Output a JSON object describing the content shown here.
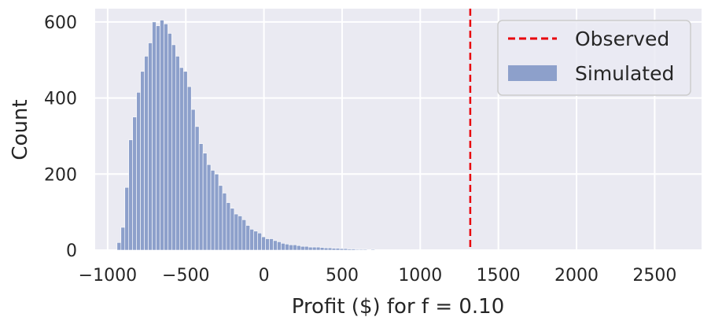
{
  "chart_data": {
    "type": "histogram",
    "title": "",
    "xlabel": "Profit ($) for f = 0.10",
    "ylabel": "Count",
    "xlim": [
      -1080,
      2800
    ],
    "ylim": [
      0,
      635
    ],
    "xticks": [
      -1000,
      -500,
      0,
      500,
      1000,
      1500,
      2000,
      2500
    ],
    "xtick_labels": [
      "−1000",
      "−500",
      "0",
      "500",
      "1000",
      "1500",
      "2000",
      "2500"
    ],
    "yticks": [
      0,
      200,
      400,
      600
    ],
    "ytick_labels": [
      "0",
      "200",
      "400",
      "600"
    ],
    "grid": true,
    "legend_position": "top-right",
    "bin_start": -940,
    "bin_width": 25,
    "counts": [
      20,
      60,
      165,
      290,
      350,
      415,
      470,
      510,
      545,
      600,
      590,
      605,
      595,
      570,
      540,
      510,
      480,
      470,
      430,
      370,
      325,
      280,
      255,
      225,
      210,
      200,
      170,
      150,
      125,
      110,
      95,
      90,
      80,
      65,
      55,
      50,
      45,
      35,
      30,
      30,
      25,
      22,
      18,
      16,
      14,
      14,
      12,
      10,
      10,
      8,
      8,
      8,
      7,
      6,
      6,
      5,
      5,
      4,
      4,
      3,
      3,
      2,
      2,
      2,
      1,
      2,
      1,
      1,
      1,
      1,
      1,
      1,
      0,
      1,
      0,
      1,
      0,
      0,
      0,
      0,
      0,
      0,
      0,
      0,
      0,
      0,
      0,
      0,
      0,
      0,
      0,
      0,
      0,
      0,
      0,
      0,
      0,
      0,
      0,
      0,
      0,
      0,
      0,
      0,
      0,
      0,
      0,
      0,
      0,
      0,
      0,
      0,
      0,
      0,
      0,
      0,
      0,
      0,
      0,
      0,
      0,
      0,
      0,
      0,
      0,
      0,
      0,
      0,
      0,
      0,
      0,
      0,
      0,
      0,
      0,
      0,
      0,
      0,
      0,
      0,
      0,
      0,
      0,
      0,
      1
    ],
    "observed_value": 1320,
    "series": [
      {
        "name": "Observed",
        "kind": "vline",
        "color": "#e8000b"
      },
      {
        "name": "Simulated",
        "kind": "histogram",
        "color": "#8da0cb"
      }
    ],
    "colors": {
      "background": "#eaeaf2",
      "grid": "#ffffff",
      "bar_fill": "#8da0cb",
      "bar_edge": "#ffffff",
      "observed": "#e8000b"
    }
  }
}
